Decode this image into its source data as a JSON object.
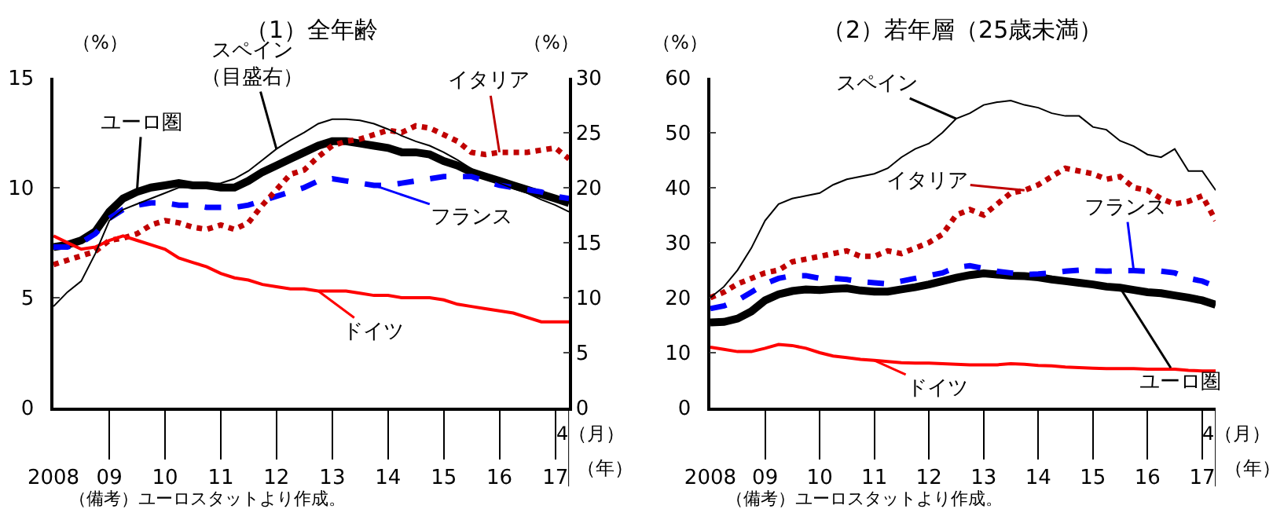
{
  "chart_data": [
    {
      "type": "line",
      "title": "（1）全年齢",
      "ylabel": "（%）",
      "y2label": "（%）",
      "x": [
        "2008-01",
        "2008-04",
        "2008-07",
        "2008-10",
        "2009-01",
        "2009-04",
        "2009-07",
        "2009-10",
        "2010-01",
        "2010-04",
        "2010-07",
        "2010-10",
        "2011-01",
        "2011-04",
        "2011-07",
        "2011-10",
        "2012-01",
        "2012-04",
        "2012-07",
        "2012-10",
        "2013-01",
        "2013-04",
        "2013-07",
        "2013-10",
        "2014-01",
        "2014-04",
        "2014-07",
        "2014-10",
        "2015-01",
        "2015-04",
        "2015-07",
        "2015-10",
        "2016-01",
        "2016-04",
        "2016-07",
        "2016-10",
        "2017-01",
        "2017-04"
      ],
      "xlim": [
        "2008-01",
        "2017-04"
      ],
      "xticks": [
        {
          "value": "2008-01",
          "label": "2008"
        },
        {
          "value": "2009-01",
          "label": "09"
        },
        {
          "value": "2010-01",
          "label": "10"
        },
        {
          "value": "2011-01",
          "label": "11"
        },
        {
          "value": "2012-01",
          "label": "12"
        },
        {
          "value": "2013-01",
          "label": "13"
        },
        {
          "value": "2014-01",
          "label": "14"
        },
        {
          "value": "2015-01",
          "label": "15"
        },
        {
          "value": "2016-01",
          "label": "16"
        },
        {
          "value": "2017-01",
          "label": "17"
        }
      ],
      "ylim": [
        0,
        15
      ],
      "yticks": [
        0,
        5,
        10,
        15
      ],
      "y2lim": [
        0,
        30
      ],
      "y2ticks": [
        0,
        5,
        10,
        15,
        20,
        25,
        30
      ],
      "annotations": [
        "4（月）",
        "（年）",
        "（備考）ユーロスタットより作成。"
      ],
      "series": [
        {
          "name": "ユーロ圏",
          "color": "#000000",
          "line_style": "solid",
          "values": [
            7.3,
            7.4,
            7.6,
            8.0,
            8.9,
            9.5,
            9.8,
            10.0,
            10.1,
            10.2,
            10.1,
            10.1,
            10.0,
            10.0,
            10.3,
            10.7,
            11.0,
            11.3,
            11.6,
            11.9,
            12.1,
            12.1,
            12.0,
            11.9,
            11.8,
            11.6,
            11.6,
            11.5,
            11.2,
            11.0,
            10.7,
            10.5,
            10.3,
            10.1,
            9.9,
            9.7,
            9.5,
            9.3
          ]
        },
        {
          "name": "フランス",
          "color": "#0000ff",
          "line_style": "dashed",
          "values": [
            7.3,
            7.3,
            7.5,
            7.9,
            8.6,
            9.0,
            9.2,
            9.3,
            9.3,
            9.2,
            9.2,
            9.1,
            9.1,
            9.1,
            9.2,
            9.4,
            9.6,
            9.8,
            10.0,
            10.3,
            10.4,
            10.3,
            10.2,
            10.1,
            10.1,
            10.2,
            10.3,
            10.4,
            10.5,
            10.5,
            10.5,
            10.3,
            10.1,
            10.0,
            9.9,
            9.8,
            9.6,
            9.5
          ]
        },
        {
          "name": "イタリア",
          "color": "#c00000",
          "line_style": "dotted",
          "values": [
            6.5,
            6.7,
            6.9,
            7.1,
            7.6,
            7.7,
            7.9,
            8.3,
            8.5,
            8.4,
            8.2,
            8.1,
            8.3,
            8.1,
            8.4,
            9.2,
            9.9,
            10.6,
            10.8,
            11.4,
            11.9,
            12.1,
            12.2,
            12.4,
            12.6,
            12.5,
            12.8,
            12.7,
            12.4,
            12.1,
            11.6,
            11.5,
            11.6,
            11.6,
            11.6,
            11.7,
            11.8,
            11.3
          ]
        },
        {
          "name": "ドイツ",
          "color": "#ff0000",
          "line_style": "solid",
          "values": [
            7.8,
            7.5,
            7.2,
            7.3,
            7.6,
            7.8,
            7.6,
            7.4,
            7.2,
            6.8,
            6.6,
            6.4,
            6.1,
            5.9,
            5.8,
            5.6,
            5.5,
            5.4,
            5.4,
            5.3,
            5.3,
            5.3,
            5.2,
            5.1,
            5.1,
            5.0,
            5.0,
            5.0,
            4.9,
            4.7,
            4.6,
            4.5,
            4.4,
            4.3,
            4.1,
            3.9,
            3.9,
            3.9
          ]
        },
        {
          "name": "スペイン（目盛右）",
          "color": "#000000",
          "line_style": "solid",
          "axis": "y2",
          "values": [
            9.2,
            10.5,
            11.5,
            14,
            17,
            18,
            18.5,
            19,
            19.5,
            20,
            20,
            20.3,
            20.4,
            20.8,
            21.5,
            22.5,
            23.5,
            24.3,
            25,
            25.8,
            26.2,
            26.2,
            26.1,
            25.8,
            25.3,
            24.7,
            24.2,
            23.8,
            23.2,
            22.5,
            21.7,
            21.0,
            20.4,
            19.9,
            19.5,
            18.9,
            18.4,
            17.8
          ]
        }
      ]
    },
    {
      "type": "line",
      "title": "（2）若年層（25歳未満）",
      "ylabel": "（%）",
      "x": [
        "2008-01",
        "2008-04",
        "2008-07",
        "2008-10",
        "2009-01",
        "2009-04",
        "2009-07",
        "2009-10",
        "2010-01",
        "2010-04",
        "2010-07",
        "2010-10",
        "2011-01",
        "2011-04",
        "2011-07",
        "2011-10",
        "2012-01",
        "2012-04",
        "2012-07",
        "2012-10",
        "2013-01",
        "2013-04",
        "2013-07",
        "2013-10",
        "2014-01",
        "2014-04",
        "2014-07",
        "2014-10",
        "2015-01",
        "2015-04",
        "2015-07",
        "2015-10",
        "2016-01",
        "2016-04",
        "2016-07",
        "2016-10",
        "2017-01",
        "2017-04"
      ],
      "xlim": [
        "2008-01",
        "2017-04"
      ],
      "xticks": [
        {
          "value": "2008-01",
          "label": "2008"
        },
        {
          "value": "2009-01",
          "label": "09"
        },
        {
          "value": "2010-01",
          "label": "10"
        },
        {
          "value": "2011-01",
          "label": "11"
        },
        {
          "value": "2012-01",
          "label": "12"
        },
        {
          "value": "2013-01",
          "label": "13"
        },
        {
          "value": "2014-01",
          "label": "14"
        },
        {
          "value": "2015-01",
          "label": "15"
        },
        {
          "value": "2016-01",
          "label": "16"
        },
        {
          "value": "2017-01",
          "label": "17"
        }
      ],
      "ylim": [
        0,
        60
      ],
      "yticks": [
        0,
        10,
        20,
        30,
        40,
        50,
        60
      ],
      "annotations": [
        "4（月）",
        "（年）",
        "（備考）ユーロスタットより作成。"
      ],
      "series": [
        {
          "name": "ユーロ圏",
          "color": "#000000",
          "line_style": "solid",
          "values": [
            15.5,
            15.6,
            16.2,
            17.5,
            19.5,
            20.6,
            21.2,
            21.5,
            21.4,
            21.6,
            21.7,
            21.3,
            21.1,
            21.1,
            21.5,
            21.9,
            22.4,
            23.0,
            23.6,
            24.1,
            24.4,
            24.2,
            24.0,
            23.9,
            23.7,
            23.3,
            23.0,
            22.7,
            22.4,
            22.0,
            21.8,
            21.4,
            21.0,
            20.8,
            20.4,
            20.0,
            19.5,
            18.7
          ]
        },
        {
          "name": "フランス",
          "color": "#0000ff",
          "line_style": "dashed",
          "values": [
            18,
            18.5,
            19.5,
            21,
            22.5,
            23.5,
            24,
            24,
            23.5,
            23.5,
            23.3,
            22.9,
            22.7,
            22.5,
            23,
            23.5,
            24,
            24.5,
            25.5,
            25.8,
            25.3,
            24.8,
            24.5,
            24.2,
            24.3,
            24.5,
            24.8,
            25,
            24.9,
            24.8,
            24.9,
            24.9,
            24.8,
            24.8,
            24.5,
            23.5,
            23,
            22
          ]
        },
        {
          "name": "イタリア",
          "color": "#c00000",
          "line_style": "dotted",
          "values": [
            20,
            21,
            22.5,
            23.5,
            24.5,
            25,
            26.5,
            27,
            27.5,
            28,
            28.5,
            27.5,
            27.5,
            28.5,
            28,
            29,
            30,
            31.5,
            35,
            36,
            35,
            37,
            39,
            39.5,
            40.5,
            42,
            43.5,
            43,
            42.5,
            41.5,
            42,
            40,
            39.5,
            38,
            37,
            37.5,
            38.5,
            34
          ]
        },
        {
          "name": "ドイツ",
          "color": "#ff0000",
          "line_style": "solid",
          "values": [
            11,
            10.6,
            10.2,
            10.2,
            10.8,
            11.5,
            11.3,
            10.8,
            10,
            9.4,
            9.1,
            8.8,
            8.6,
            8.4,
            8.2,
            8.1,
            8.1,
            8.0,
            7.9,
            7.8,
            7.8,
            7.8,
            8.0,
            7.9,
            7.7,
            7.6,
            7.4,
            7.3,
            7.2,
            7.1,
            7.1,
            7.1,
            7.0,
            7.0,
            7.0,
            6.8,
            6.7,
            6.7
          ]
        },
        {
          "name": "スペイン",
          "color": "#000000",
          "line_style": "solid",
          "values": [
            20,
            22,
            25,
            29,
            34,
            37,
            38,
            38.5,
            39,
            40.5,
            41.5,
            42,
            42.5,
            43.5,
            45.5,
            47,
            48,
            50,
            52.5,
            53.5,
            55,
            55.5,
            55.8,
            55,
            54.5,
            53.5,
            53,
            53,
            51,
            50.5,
            48.5,
            47.5,
            46,
            45.5,
            47,
            43,
            43,
            39.5
          ]
        }
      ]
    }
  ]
}
